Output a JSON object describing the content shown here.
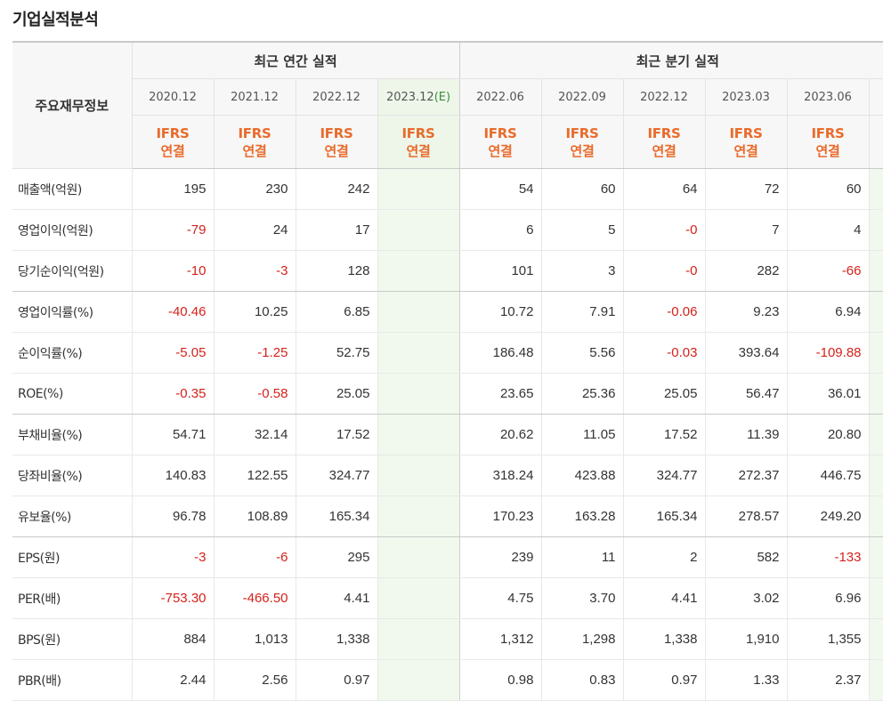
{
  "title": "기업실적분석",
  "header": {
    "label": "주요재무정보",
    "annual_group": "최근 연간 실적",
    "quarter_group": "최근 분기 실적",
    "annual_periods": [
      "2020.12",
      "2021.12",
      "2022.12",
      "2023.12"
    ],
    "estimate_mark": "(E)",
    "quarter_periods": [
      "2022.06",
      "2022.09",
      "2022.12",
      "2023.03",
      "2023.06"
    ],
    "std_line1": "IFRS",
    "std_line2": "연결"
  },
  "colors": {
    "negative": "#d3221b",
    "ifrs": "#e96b2b",
    "estimate_bg": "#f1f8ed"
  },
  "rows": [
    {
      "label": "매출액(억원)",
      "annual": [
        "195",
        "230",
        "242",
        ""
      ],
      "quarter": [
        "54",
        "60",
        "64",
        "72",
        "60"
      ]
    },
    {
      "label": "영업이익(억원)",
      "annual": [
        "-79",
        "24",
        "17",
        ""
      ],
      "quarter": [
        "6",
        "5",
        "-0",
        "7",
        "4"
      ]
    },
    {
      "label": "당기순이익(억원)",
      "annual": [
        "-10",
        "-3",
        "128",
        ""
      ],
      "quarter": [
        "101",
        "3",
        "-0",
        "282",
        "-66"
      ]
    },
    {
      "label": "영업이익률(%)",
      "annual": [
        "-40.46",
        "10.25",
        "6.85",
        ""
      ],
      "quarter": [
        "10.72",
        "7.91",
        "-0.06",
        "9.23",
        "6.94"
      ]
    },
    {
      "label": "순이익률(%)",
      "annual": [
        "-5.05",
        "-1.25",
        "52.75",
        ""
      ],
      "quarter": [
        "186.48",
        "5.56",
        "-0.03",
        "393.64",
        "-109.88"
      ]
    },
    {
      "label": "ROE(%)",
      "annual": [
        "-0.35",
        "-0.58",
        "25.05",
        ""
      ],
      "quarter": [
        "23.65",
        "25.36",
        "25.05",
        "56.47",
        "36.01"
      ]
    },
    {
      "label": "부채비율(%)",
      "annual": [
        "54.71",
        "32.14",
        "17.52",
        ""
      ],
      "quarter": [
        "20.62",
        "11.05",
        "17.52",
        "11.39",
        "20.80"
      ]
    },
    {
      "label": "당좌비율(%)",
      "annual": [
        "140.83",
        "122.55",
        "324.77",
        ""
      ],
      "quarter": [
        "318.24",
        "423.88",
        "324.77",
        "272.37",
        "446.75"
      ]
    },
    {
      "label": "유보율(%)",
      "annual": [
        "96.78",
        "108.89",
        "165.34",
        ""
      ],
      "quarter": [
        "170.23",
        "163.28",
        "165.34",
        "278.57",
        "249.20"
      ]
    },
    {
      "label": "EPS(원)",
      "annual": [
        "-3",
        "-6",
        "295",
        ""
      ],
      "quarter": [
        "239",
        "11",
        "2",
        "582",
        "-133"
      ]
    },
    {
      "label": "PER(배)",
      "annual": [
        "-753.30",
        "-466.50",
        "4.41",
        ""
      ],
      "quarter": [
        "4.75",
        "3.70",
        "4.41",
        "3.02",
        "6.96"
      ]
    },
    {
      "label": "BPS(원)",
      "annual": [
        "884",
        "1,013",
        "1,338",
        ""
      ],
      "quarter": [
        "1,312",
        "1,298",
        "1,338",
        "1,910",
        "1,355"
      ]
    },
    {
      "label": "PBR(배)",
      "annual": [
        "2.44",
        "2.56",
        "0.97",
        ""
      ],
      "quarter": [
        "0.98",
        "0.83",
        "0.97",
        "1.33",
        "2.37"
      ]
    }
  ]
}
